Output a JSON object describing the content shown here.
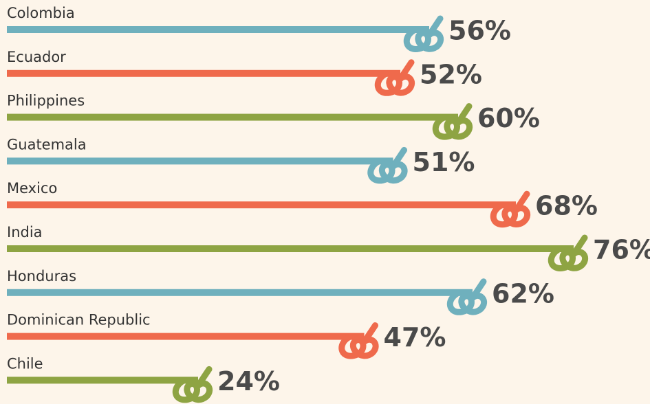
{
  "chart_data": {
    "type": "bar",
    "categories": [
      "Colombia",
      "Ecuador",
      "Philippines",
      "Guatemala",
      "Mexico",
      "India",
      "Honduras",
      "Dominican Republic",
      "Chile"
    ],
    "values": [
      56,
      52,
      60,
      51,
      68,
      76,
      62,
      47,
      24
    ],
    "value_labels": [
      "56%",
      "52%",
      "60%",
      "51%",
      "68%",
      "76%",
      "62%",
      "47%",
      "24%"
    ],
    "colors": [
      "#6fb0bd",
      "#ef6a4c",
      "#8ea443",
      "#6fb0bd",
      "#ef6a4c",
      "#8ea443",
      "#6fb0bd",
      "#ef6a4c",
      "#8ea443"
    ]
  }
}
